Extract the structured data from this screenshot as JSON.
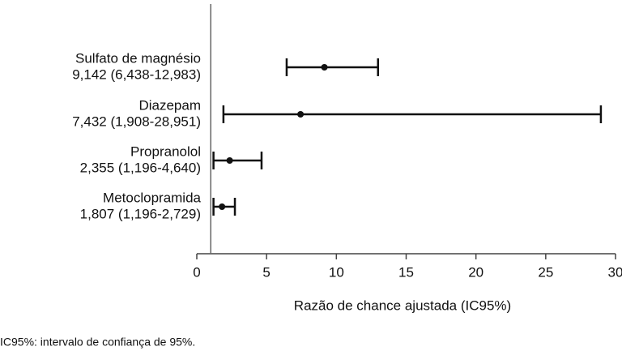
{
  "chart_data": {
    "type": "forest",
    "categories": [
      "Sulfato de magnésio",
      "Diazepam",
      "Propranolol",
      "Metoclopramida"
    ],
    "values": [
      9.142,
      7.432,
      2.355,
      1.807
    ],
    "lower": [
      6.438,
      1.908,
      1.196,
      1.196
    ],
    "upper": [
      12.983,
      28.951,
      4.64,
      2.729
    ],
    "value_labels": [
      "9,142 (6,438-12,983)",
      "7,432 (1,908-28,951)",
      "2,355 (1,196-4,640)",
      "1,807 (1,196-2,729)"
    ],
    "color": "#111111",
    "reference_line": 1,
    "xlim": [
      0,
      30
    ],
    "xticks": [
      0,
      5,
      10,
      15,
      20,
      25,
      30
    ],
    "x_label": "Razão de chance ajustada (IC95%)",
    "footnote": "IC95%: intervalo de confiança de 95%."
  }
}
